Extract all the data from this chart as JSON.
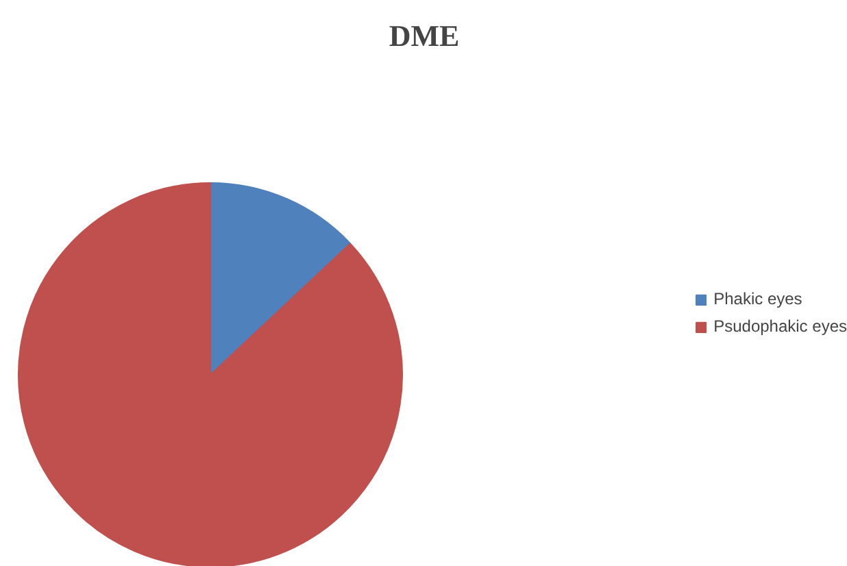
{
  "chart_data": {
    "type": "pie",
    "title": "DME",
    "categories": [
      "Phakic eyes",
      "Psudophakic eyes"
    ],
    "values": [
      13,
      87
    ],
    "colors": [
      "#4f81bd",
      "#c0504d"
    ],
    "legend": "right"
  }
}
